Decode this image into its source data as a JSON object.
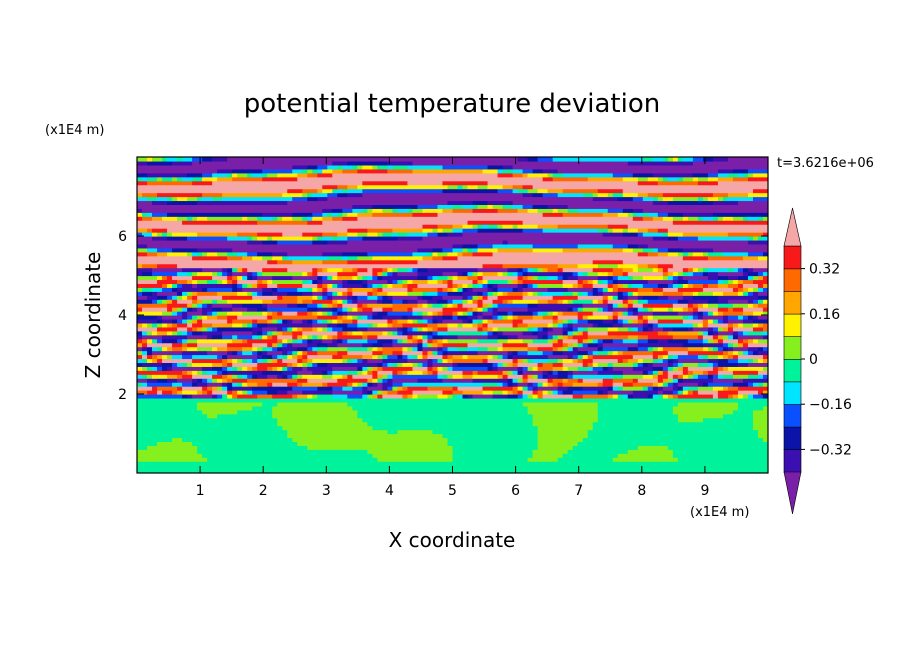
{
  "chart_data": {
    "type": "heatmap",
    "title": "potential temperature deviation",
    "xlabel": "X coordinate",
    "ylabel": "Z coordinate",
    "x_unit": "(x1E4 m)",
    "y_unit": "(x1E4 m)",
    "time_label": "t=3.6216e+06",
    "xlim": [
      0,
      10
    ],
    "ylim": [
      0,
      8
    ],
    "x_ticks": [
      1,
      2,
      3,
      4,
      5,
      6,
      7,
      8,
      9
    ],
    "y_ticks": [
      2,
      4,
      6
    ],
    "colorbar": {
      "levels": [
        -0.4,
        -0.32,
        -0.24,
        -0.16,
        -0.08,
        0,
        0.08,
        0.16,
        0.24,
        0.32,
        0.4
      ],
      "tick_labels": [
        "0.32",
        "0.16",
        "0",
        "−0.16",
        "−0.32"
      ],
      "tick_values": [
        0.32,
        0.16,
        0,
        -0.16,
        -0.32
      ],
      "colors_low_to_high": [
        "#7a1fa8",
        "#3b0fb0",
        "#0a14a8",
        "#0a50ff",
        "#00e5ff",
        "#00f29a",
        "#86f01e",
        "#fff200",
        "#ffa600",
        "#ff6a00",
        "#f81a1a",
        "#f5a6a6"
      ],
      "extend": "both"
    },
    "regions": [
      {
        "z_range": [
          0,
          1.95
        ],
        "pattern": "smooth",
        "values": [
          0,
          0.08
        ],
        "colors": [
          "#00f29a",
          "#86f01e"
        ]
      },
      {
        "z_range": [
          1.95,
          5.2
        ],
        "pattern": "turbulent mixed layers",
        "values": [
          -0.4,
          0.4
        ]
      },
      {
        "z_range": [
          5.2,
          8
        ],
        "pattern": "stratified bands",
        "values": [
          -0.4,
          0.4
        ],
        "dominant": [
          "#f5a6a6",
          "#7a1fa8"
        ]
      }
    ]
  }
}
